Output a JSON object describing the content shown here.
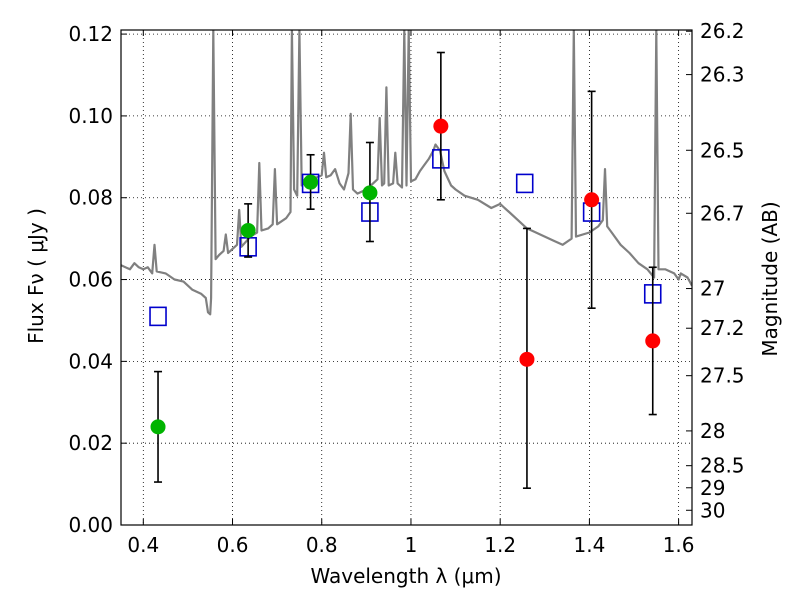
{
  "chart_data": {
    "type": "scatter",
    "xlabel": "Wavelength  λ (μm)",
    "ylabel": "Flux  Fν  ( μJy )",
    "ylabel_right": "Magnitude (AB)",
    "xlim": [
      0.35,
      1.63
    ],
    "ylim": [
      0.0,
      0.121
    ],
    "grid": true,
    "x_ticks": [
      0.4,
      0.6,
      0.8,
      1.0,
      1.2,
      1.4,
      1.6
    ],
    "x_tick_labels": [
      "0.4",
      "0.6",
      "0.8",
      "1",
      "1.2",
      "1.4",
      "1.6"
    ],
    "y_ticks": [
      0.0,
      0.02,
      0.04,
      0.06,
      0.08,
      0.1,
      0.12
    ],
    "y_tick_labels": [
      "0.00",
      "0.02",
      "0.04",
      "0.06",
      "0.08",
      "0.10",
      "0.12"
    ],
    "right_ticks": [
      {
        "label": "26.2",
        "flux": 0.1207
      },
      {
        "label": "26.3",
        "flux": 0.1101
      },
      {
        "label": "26.5",
        "flux": 0.0916
      },
      {
        "label": "26.7",
        "flux": 0.0762
      },
      {
        "label": "27",
        "flux": 0.0578
      },
      {
        "label": "27.2",
        "flux": 0.0481
      },
      {
        "label": "27.5",
        "flux": 0.0365
      },
      {
        "label": "28",
        "flux": 0.023
      },
      {
        "label": "28.5",
        "flux": 0.0145
      },
      {
        "label": "29",
        "flux": 0.0091
      },
      {
        "label": "30",
        "flux": 0.0036
      }
    ],
    "series": [
      {
        "kind": "line",
        "color": "#808080",
        "points": [
          [
            0.35,
            0.0635
          ],
          [
            0.37,
            0.0625
          ],
          [
            0.38,
            0.064
          ],
          [
            0.39,
            0.063
          ],
          [
            0.4,
            0.0625
          ],
          [
            0.41,
            0.063
          ],
          [
            0.42,
            0.0615
          ],
          [
            0.425,
            0.0685
          ],
          [
            0.43,
            0.062
          ],
          [
            0.45,
            0.0615
          ],
          [
            0.47,
            0.06
          ],
          [
            0.49,
            0.0595
          ],
          [
            0.51,
            0.0575
          ],
          [
            0.53,
            0.0565
          ],
          [
            0.54,
            0.0555
          ],
          [
            0.545,
            0.052
          ],
          [
            0.55,
            0.0515
          ],
          [
            0.552,
            0.0555
          ],
          [
            0.557,
            0.121
          ],
          [
            0.562,
            0.065
          ],
          [
            0.57,
            0.066
          ],
          [
            0.58,
            0.067
          ],
          [
            0.585,
            0.071
          ],
          [
            0.59,
            0.0665
          ],
          [
            0.6,
            0.0675
          ],
          [
            0.61,
            0.0685
          ],
          [
            0.615,
            0.077
          ],
          [
            0.62,
            0.068
          ],
          [
            0.64,
            0.0705
          ],
          [
            0.655,
            0.0715
          ],
          [
            0.66,
            0.0885
          ],
          [
            0.665,
            0.072
          ],
          [
            0.68,
            0.0725
          ],
          [
            0.69,
            0.0735
          ],
          [
            0.695,
            0.087
          ],
          [
            0.7,
            0.0735
          ],
          [
            0.72,
            0.075
          ],
          [
            0.73,
            0.0765
          ],
          [
            0.733,
            0.121
          ],
          [
            0.738,
            0.082
          ],
          [
            0.745,
            0.0805
          ],
          [
            0.75,
            0.121
          ],
          [
            0.755,
            0.083
          ],
          [
            0.77,
            0.085
          ],
          [
            0.79,
            0.085
          ],
          [
            0.8,
            0.0855
          ],
          [
            0.805,
            0.091
          ],
          [
            0.81,
            0.085
          ],
          [
            0.82,
            0.0855
          ],
          [
            0.83,
            0.087
          ],
          [
            0.84,
            0.0835
          ],
          [
            0.85,
            0.082
          ],
          [
            0.86,
            0.086
          ],
          [
            0.865,
            0.1005
          ],
          [
            0.87,
            0.082
          ],
          [
            0.88,
            0.081
          ],
          [
            0.9,
            0.082
          ],
          [
            0.91,
            0.083
          ],
          [
            0.925,
            0.0845
          ],
          [
            0.93,
            0.0995
          ],
          [
            0.935,
            0.083
          ],
          [
            0.94,
            0.0835
          ],
          [
            0.945,
            0.107
          ],
          [
            0.95,
            0.083
          ],
          [
            0.96,
            0.0835
          ],
          [
            0.965,
            0.091
          ],
          [
            0.97,
            0.0835
          ],
          [
            0.98,
            0.0825
          ],
          [
            0.985,
            0.121
          ],
          [
            0.99,
            0.083
          ],
          [
            0.995,
            0.121
          ],
          [
            1.0,
            0.084
          ],
          [
            1.01,
            0.0845
          ],
          [
            1.02,
            0.0865
          ],
          [
            1.03,
            0.088
          ],
          [
            1.04,
            0.0895
          ],
          [
            1.05,
            0.0915
          ],
          [
            1.055,
            0.093
          ],
          [
            1.065,
            0.0915
          ],
          [
            1.075,
            0.0865
          ],
          [
            1.09,
            0.083
          ],
          [
            1.1,
            0.082
          ],
          [
            1.12,
            0.0805
          ],
          [
            1.15,
            0.0795
          ],
          [
            1.18,
            0.0775
          ],
          [
            1.2,
            0.0785
          ],
          [
            1.21,
            0.0775
          ],
          [
            1.22,
            0.0765
          ],
          [
            1.24,
            0.0745
          ],
          [
            1.26,
            0.0725
          ],
          [
            1.28,
            0.0715
          ],
          [
            1.3,
            0.0705
          ],
          [
            1.32,
            0.0695
          ],
          [
            1.34,
            0.0685
          ],
          [
            1.36,
            0.07
          ],
          [
            1.365,
            0.121
          ],
          [
            1.37,
            0.0705
          ],
          [
            1.4,
            0.0715
          ],
          [
            1.42,
            0.073
          ],
          [
            1.43,
            0.0745
          ],
          [
            1.435,
            0.087
          ],
          [
            1.44,
            0.073
          ],
          [
            1.45,
            0.0715
          ],
          [
            1.47,
            0.0685
          ],
          [
            1.49,
            0.0665
          ],
          [
            1.51,
            0.064
          ],
          [
            1.53,
            0.0625
          ],
          [
            1.545,
            0.0605
          ],
          [
            1.55,
            0.121
          ],
          [
            1.555,
            0.0625
          ],
          [
            1.57,
            0.0625
          ],
          [
            1.59,
            0.0615
          ],
          [
            1.6,
            0.06
          ],
          [
            1.605,
            0.0615
          ],
          [
            1.62,
            0.0605
          ],
          [
            1.63,
            0.0585
          ]
        ]
      },
      {
        "kind": "open-square",
        "color": "#0000cc",
        "x": [
          0.433,
          0.635,
          0.775,
          0.908,
          1.067,
          1.255,
          1.405,
          1.542
        ],
        "y": [
          0.051,
          0.068,
          0.0835,
          0.0765,
          0.0895,
          0.0835,
          0.0765,
          0.0565
        ]
      },
      {
        "kind": "filled-circle",
        "color": "#00b400",
        "x": [
          0.433,
          0.635,
          0.775,
          0.908
        ],
        "y": [
          0.024,
          0.072,
          0.0838,
          0.0812
        ],
        "err_low": [
          0.0105,
          0.0655,
          0.0772,
          0.0693
        ],
        "err_high": [
          0.0375,
          0.0785,
          0.0905,
          0.0935
        ]
      },
      {
        "kind": "filled-circle",
        "color": "#ff0000",
        "x": [
          1.067,
          1.26,
          1.405,
          1.542
        ],
        "y": [
          0.0975,
          0.0405,
          0.0795,
          0.045
        ],
        "err_low": [
          0.0795,
          0.009,
          0.053,
          0.027
        ],
        "err_high": [
          0.1155,
          0.0725,
          0.106,
          0.063
        ]
      }
    ]
  }
}
